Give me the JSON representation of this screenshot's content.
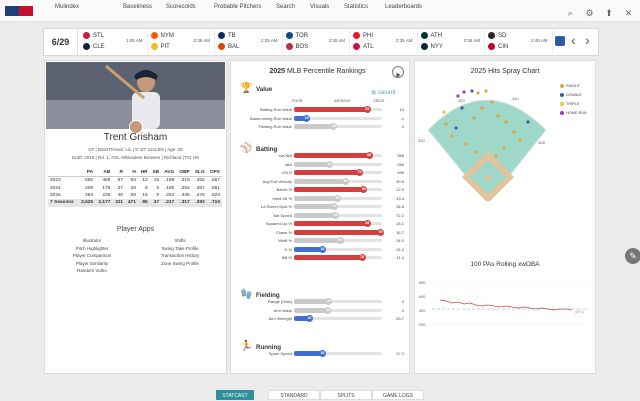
{
  "nav": {
    "items": [
      "Mulindex",
      "Baseliness",
      "Scorecolds",
      "Probable Pitchers",
      "Search",
      "Visuals",
      "Statistics",
      "Leaderboards"
    ]
  },
  "window_buttons": [
    "⌕",
    "⚙",
    "⬆",
    "✕"
  ],
  "scoreboard": {
    "date": "6/29",
    "games": [
      {
        "away": "STL",
        "home": "CLE",
        "time": "1:05 AM",
        "away_color": "#c41e3a",
        "home_color": "#0c2340"
      },
      {
        "away": "NYM",
        "home": "PIT",
        "time": "2:35 AM",
        "away_color": "#ff5910",
        "home_color": "#fdb827"
      },
      {
        "away": "TB",
        "home": "BAL",
        "time": "2:35 AM",
        "away_color": "#092c5c",
        "home_color": "#df4601"
      },
      {
        "away": "TOR",
        "home": "BOS",
        "time": "2:35 AM",
        "away_color": "#134a8e",
        "home_color": "#bd3039"
      },
      {
        "away": "PHI",
        "home": "ATL",
        "time": "2:35 AM",
        "away_color": "#e81828",
        "home_color": "#ce1141"
      },
      {
        "away": "ATH",
        "home": "NYY",
        "time": "2:35 AM",
        "away_color": "#003831",
        "home_color": "#0c2340"
      },
      {
        "away": "SD",
        "home": "CIN",
        "time": "2:40 AM",
        "away_color": "#2f241d",
        "home_color": "#c6011f"
      }
    ],
    "prev": "‹",
    "next": "›"
  },
  "player": {
    "name": "Trent Grisham",
    "info": "CF | Bats/Throws: L/L | 5' 10\" 221LBS | Age: 28",
    "draft": "Draft: 2015 | Rd. 1, #15, Milwaukee Brewers | Richland (TX) HS",
    "stats": {
      "headers": [
        "",
        "PA",
        "AB",
        "R",
        "H",
        "HR",
        "SB",
        "AVG",
        "OBP",
        "SLG",
        "OPS"
      ],
      "rows": [
        [
          "2023",
          "555",
          "469",
          "67",
          "93",
          "13",
          "15",
          ".198",
          ".315",
          ".352",
          ".667"
        ],
        [
          "2024",
          "209",
          "176",
          "27",
          "33",
          "9",
          "0",
          ".190",
          ".294",
          ".367",
          ".661"
        ],
        [
          "2025",
          "263",
          "225",
          "40",
          "59",
          "16",
          "0",
          ".262",
          ".345",
          ".478",
          ".823"
        ],
        [
          "7 Seasons",
          "2,525",
          "2,177",
          "311",
          "471",
          "85",
          "47",
          ".217",
          ".317",
          ".393",
          ".710"
        ]
      ]
    }
  },
  "player_apps": {
    "title": "Player Apps",
    "left": [
      "Illustrator",
      "Pitch Highlighter",
      "Player Comparison",
      "Player Similarity",
      "Random Video"
    ],
    "right": [
      "Shifts",
      "Swing Take Profile",
      "Transaction History",
      "Zone Swing Profile"
    ]
  },
  "percentile": {
    "title_year": "2025",
    "title_rest": "MLB Percentile Rankings",
    "savant_label": "savant",
    "scale": {
      "poor": "POOR",
      "average": "AVERAGE",
      "great": "GREAT"
    },
    "sections": [
      {
        "name": "Value",
        "icon": "🏆",
        "metrics": [
          {
            "label": "Batting Run Value",
            "pct": 84,
            "value": "13"
          },
          {
            "label": "Baserunning Run Value",
            "pct": 15,
            "value": "-1"
          },
          {
            "label": "Fielding Run Value",
            "pct": 46,
            "value": "0"
          }
        ]
      },
      {
        "name": "Batting",
        "icon": "⚾",
        "metrics": [
          {
            "label": "xwOBA",
            "pct": 86,
            "value": ".368"
          },
          {
            "label": "xBA",
            "pct": 41,
            "value": ".256"
          },
          {
            "label": "xSLG",
            "pct": 75,
            "value": ".496"
          },
          {
            "label": "Avg Exit Velocity",
            "pct": 59,
            "value": "90.6"
          },
          {
            "label": "Barrel %",
            "pct": 80,
            "value": "12.5"
          },
          {
            "label": "Hard-Hit %",
            "pct": 50,
            "value": "43.4"
          },
          {
            "label": "LA Sweet-Spot %",
            "pct": 47,
            "value": "34.6"
          },
          {
            "label": "Bat Speed",
            "pct": 48,
            "value": "72.2"
          },
          {
            "label": "Squared-Up %",
            "pct": 84,
            "value": "28.1"
          },
          {
            "label": "Chase %",
            "pct": 99,
            "value": "16.7"
          },
          {
            "label": "Whiff %",
            "pct": 53,
            "value": "24.0"
          },
          {
            "label": "K %",
            "pct": 33,
            "value": "24.4"
          },
          {
            "label": "BB %",
            "pct": 78,
            "value": "11.4"
          }
        ]
      },
      {
        "name": "Fielding",
        "icon": "🧤",
        "metrics": [
          {
            "label": "Range (OAA)",
            "pct": 40,
            "value": "0"
          },
          {
            "label": "Arm Value",
            "pct": 39,
            "value": "0"
          },
          {
            "label": "Arm Strength",
            "pct": 18,
            "value": "83.7"
          }
        ]
      },
      {
        "name": "Running",
        "icon": "🏃",
        "metrics": [
          {
            "label": "Sprint Speed",
            "pct": 33,
            "value": "27.2"
          }
        ]
      }
    ]
  },
  "spray": {
    "title": "2025 Hits Spray Chart",
    "legend": [
      {
        "label": "SINGLE",
        "color": "#e8a33d"
      },
      {
        "label": "DOUBLE",
        "color": "#3b5bb8"
      },
      {
        "label": "TRIPLE",
        "color": "#e9c83a"
      },
      {
        "label": "HOME RUN",
        "color": "#9a3db8"
      }
    ],
    "wall_labels": [
      "420",
      "410",
      "330",
      "328"
    ]
  },
  "rolling": {
    "title": "100 PAs Rolling xwOBA",
    "yticks": [
      ".500",
      ".400",
      ".300",
      ".200"
    ],
    "league_label": ".319 lg."
  },
  "tabs": [
    "STATCAST",
    "STANDARD",
    "SPLITS",
    "GAME LOGS"
  ],
  "edge_button": "✎",
  "colors": {
    "accent": "#2f8f9d",
    "high": "#d43f3f",
    "low": "#3f6ed4",
    "mid": "#c9c9c9"
  }
}
